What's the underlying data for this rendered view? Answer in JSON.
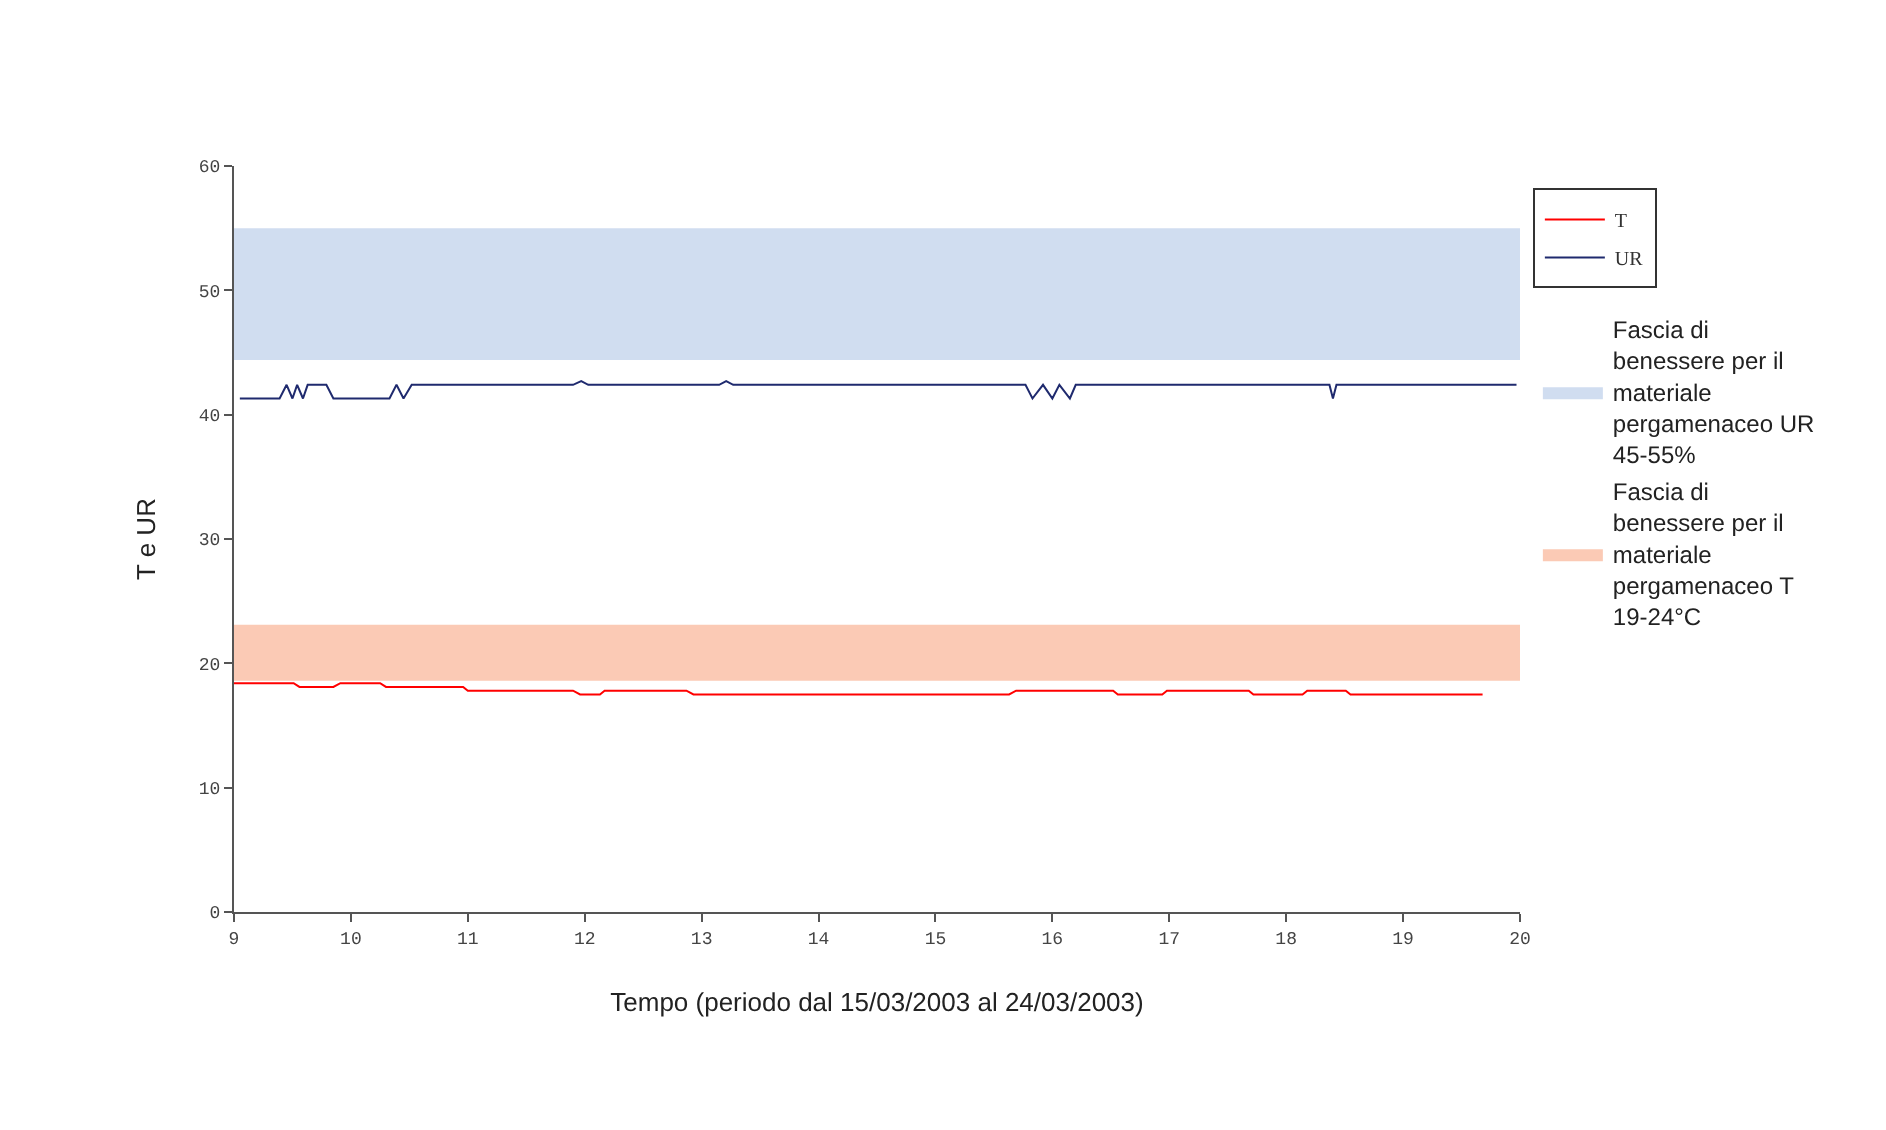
{
  "chart_data": {
    "type": "line",
    "xlabel": "Tempo (periodo dal 15/03/2003 al 24/03/2003)",
    "ylabel": "T e UR",
    "xlim": [
      9,
      20
    ],
    "xticks": [
      9,
      10,
      11,
      12,
      13,
      14,
      15,
      16,
      17,
      18,
      19,
      20
    ],
    "ylim": [
      0,
      60
    ],
    "yticks": [
      0,
      10,
      20,
      30,
      40,
      50,
      60
    ],
    "legend": "top right",
    "marker": "none",
    "line_style": "solid",
    "series": [
      {
        "name": "T",
        "color": "#ff0000",
        "x": [
          9.0,
          9.51,
          9.56,
          9.85,
          9.91,
          10.25,
          10.3,
          10.96,
          11.0,
          11.9,
          11.96,
          12.13,
          12.17,
          12.87,
          12.93,
          15.63,
          15.69,
          16.52,
          16.56,
          16.94,
          16.98,
          17.68,
          17.72,
          18.14,
          18.18,
          18.51,
          18.55,
          19.68
        ],
        "values": [
          18.4,
          18.4,
          18.1,
          18.1,
          18.4,
          18.4,
          18.1,
          18.1,
          17.8,
          17.8,
          17.5,
          17.5,
          17.8,
          17.8,
          17.5,
          17.5,
          17.8,
          17.8,
          17.5,
          17.5,
          17.8,
          17.8,
          17.5,
          17.5,
          17.8,
          17.8,
          17.5,
          17.5
        ]
      },
      {
        "name": "UR",
        "color": "#1f2a6e",
        "x": [
          9.05,
          9.39,
          9.45,
          9.5,
          9.54,
          9.59,
          9.63,
          9.79,
          9.85,
          10.33,
          10.39,
          10.45,
          10.52,
          11.9,
          11.97,
          12.03,
          13.15,
          13.21,
          13.27,
          15.77,
          15.83,
          15.92,
          16.0,
          16.06,
          16.15,
          16.2,
          18.37,
          18.4,
          18.43,
          19.97
        ],
        "values": [
          41.3,
          41.3,
          42.4,
          41.3,
          42.4,
          41.3,
          42.4,
          42.4,
          41.3,
          41.3,
          42.4,
          41.3,
          42.4,
          42.4,
          42.7,
          42.4,
          42.4,
          42.7,
          42.4,
          42.4,
          41.3,
          42.4,
          41.3,
          42.4,
          41.3,
          42.4,
          42.4,
          41.3,
          42.4,
          42.4
        ]
      }
    ],
    "bands": [
      {
        "axis": "y",
        "from": 44.4,
        "to": 55,
        "color": "#d0ddf0",
        "label": "Fascia di benessere per il materiale pergamenaceo UR 45-55%"
      },
      {
        "axis": "y",
        "from": 18.6,
        "to": 23.1,
        "color": "#fbcab5",
        "label": "Fascia di benessere per il materiale pergamenaceo T  19-24°C"
      }
    ]
  }
}
